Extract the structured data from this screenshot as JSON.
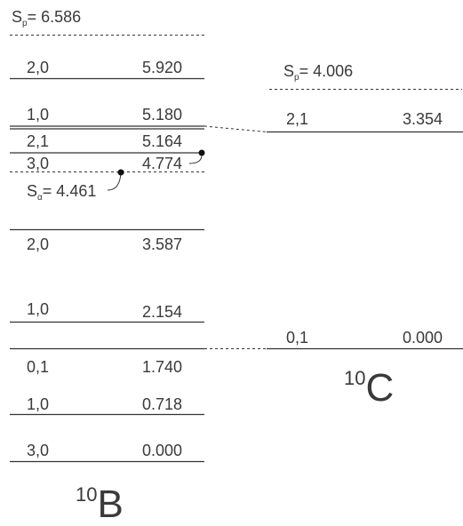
{
  "nuclei": [
    {
      "id": "B10",
      "mass": "10",
      "symbol": "B",
      "levels": [
        {
          "jt": "2,0",
          "energy": "5.920"
        },
        {
          "jt": "1,0",
          "energy": "5.180"
        },
        {
          "jt": "2,1",
          "energy": "5.164"
        },
        {
          "jt": "3,0",
          "energy": "4.774"
        },
        {
          "jt": "2,0",
          "energy": "3.587"
        },
        {
          "jt": "1,0",
          "energy": "2.154"
        },
        {
          "jt": "0,1",
          "energy": "1.740"
        },
        {
          "jt": "1,0",
          "energy": "0.718"
        },
        {
          "jt": "3,0",
          "energy": "0.000"
        }
      ],
      "thresholds": [
        {
          "symbol": "S",
          "sub": "p",
          "value": "= 6.586"
        },
        {
          "symbol": "S",
          "sub": "α",
          "value": "= 4.461"
        }
      ]
    },
    {
      "id": "C10",
      "mass": "10",
      "symbol": "C",
      "levels": [
        {
          "jt": "2,1",
          "energy": "3.354"
        },
        {
          "jt": "0,1",
          "energy": "0.000"
        }
      ],
      "thresholds": [
        {
          "symbol": "S",
          "sub": "p",
          "value": "= 4.006"
        }
      ]
    }
  ]
}
